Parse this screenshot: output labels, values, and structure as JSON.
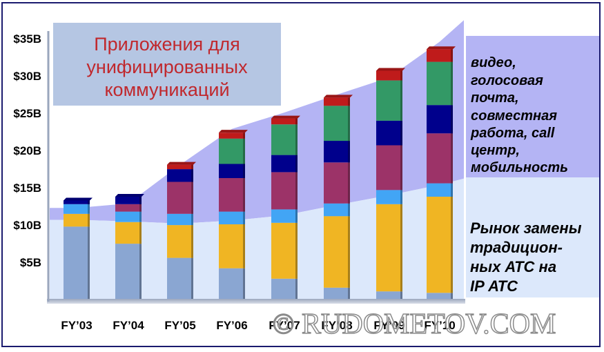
{
  "chart_data": {
    "type": "bar",
    "stacked": true,
    "title": "Приложения для унифицированных коммуникаций",
    "title_lines": [
      "Приложения для",
      "унифицированных",
      "коммуникаций"
    ],
    "categories": [
      "FY’03",
      "FY’04",
      "FY’05",
      "FY’06",
      "FY’07",
      "FY’08",
      "FY’09",
      "FY’10"
    ],
    "y_tick_labels": [
      "$5B",
      "$10B",
      "$15B",
      "$20B",
      "$25B",
      "$30B",
      "$35B"
    ],
    "y_tick_values": [
      5,
      10,
      15,
      20,
      25,
      30,
      35
    ],
    "ylim": [
      0,
      35
    ],
    "grid": false,
    "series": [
      {
        "color": "#8aa6d2",
        "values": [
          9.7,
          7.4,
          5.5,
          4.1,
          2.7,
          1.5,
          1.0,
          0.8
        ]
      },
      {
        "color": "#f0b523",
        "values": [
          1.7,
          2.9,
          4.4,
          5.9,
          7.5,
          9.6,
          11.7,
          12.9
        ]
      },
      {
        "color": "#42a5f5",
        "values": [
          1.3,
          1.4,
          1.5,
          1.7,
          1.8,
          1.7,
          1.9,
          1.8
        ]
      },
      {
        "color": "#9c3368",
        "values": [
          0.0,
          1.0,
          4.3,
          4.5,
          5.0,
          5.5,
          6.0,
          6.7
        ]
      },
      {
        "color": "#00008c",
        "values": [
          0.5,
          1.0,
          1.7,
          1.9,
          2.3,
          2.9,
          3.3,
          3.8
        ]
      },
      {
        "color": "#339966",
        "values": [
          0.0,
          0.0,
          0.0,
          3.4,
          4.1,
          4.7,
          5.4,
          5.8
        ]
      },
      {
        "color": "#bf1b1b",
        "values": [
          0.0,
          0.0,
          0.6,
          0.8,
          0.8,
          1.1,
          1.3,
          1.7
        ]
      }
    ],
    "band_values": {
      "lower": [
        10.6,
        10.4,
        10.1,
        10.5,
        11.2,
        12.6,
        13.9,
        15.3
      ],
      "upper": [
        12.2,
        12.8,
        18.0,
        22.8,
        25.0,
        27.4,
        29.7,
        34.5
      ]
    },
    "annotations": {
      "upper_region": [
        "видео,",
        "голосовая",
        "почта,",
        "совместная",
        "работа, call",
        "центр,",
        "мобильность"
      ],
      "lower_region": [
        "Рынок замены",
        "традицион-",
        "ных АТС на",
        "IP АТС"
      ]
    }
  },
  "watermark": "© RUDOMETOV.COM",
  "colors": {
    "frame": "#1a1a6e",
    "band_upper": "#b4b4f4",
    "band_lower": "#dce8fb",
    "title_box": "#b5c6e3",
    "title_text": "#c0282d",
    "label_box_upper": "#b4b4f4",
    "label_box_lower": "#dce8fb"
  }
}
